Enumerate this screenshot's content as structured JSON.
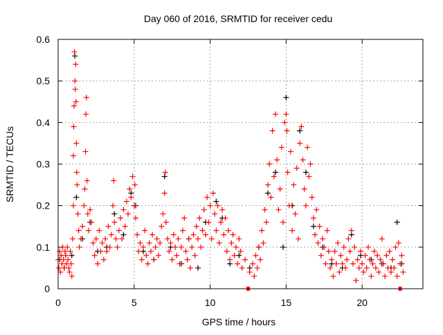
{
  "chart_data": {
    "type": "scatter",
    "title": "Day 060 of 2016, SRMTID for receiver cedu",
    "xlabel": "GPS time / hours",
    "ylabel": "SRMTID / TECUs",
    "xlim": [
      0,
      24
    ],
    "ylim": [
      0,
      0.6
    ],
    "xticks": [
      0,
      5,
      10,
      15,
      20
    ],
    "yticks": [
      0,
      0.1,
      0.2,
      0.3,
      0.4,
      0.5,
      0.6
    ],
    "xtick_labels": [
      "0",
      "5",
      "10",
      "15",
      "20"
    ],
    "ytick_labels": [
      "0",
      "0.1",
      "0.2",
      "0.3",
      "0.4",
      "0.5",
      "0.6"
    ],
    "grid": true,
    "series": [
      {
        "name": "black",
        "color": "#000000",
        "marker": "plus",
        "points": [
          [
            0.1,
            0.07
          ],
          [
            0.4,
            0.05
          ],
          [
            0.9,
            0.08
          ],
          [
            1.1,
            0.56
          ],
          [
            1.2,
            0.22
          ],
          [
            1.6,
            0.12
          ],
          [
            2.1,
            0.16
          ],
          [
            2.6,
            0.09
          ],
          [
            3.2,
            0.1
          ],
          [
            3.7,
            0.18
          ],
          [
            4.3,
            0.13
          ],
          [
            4.8,
            0.23
          ],
          [
            5.1,
            0.2
          ],
          [
            5.6,
            0.09
          ],
          [
            6.3,
            0.07
          ],
          [
            7.0,
            0.27
          ],
          [
            7.4,
            0.1
          ],
          [
            8.1,
            0.06
          ],
          [
            8.6,
            0.12
          ],
          [
            9.2,
            0.05
          ],
          [
            9.7,
            0.16
          ],
          [
            10.4,
            0.21
          ],
          [
            10.8,
            0.17
          ],
          [
            11.3,
            0.06
          ],
          [
            11.9,
            0.08
          ],
          [
            12.6,
            0.05
          ],
          [
            13.2,
            0.1
          ],
          [
            13.8,
            0.23
          ],
          [
            14.3,
            0.28
          ],
          [
            14.8,
            0.1
          ],
          [
            15.0,
            0.46
          ],
          [
            15.4,
            0.2
          ],
          [
            15.9,
            0.38
          ],
          [
            16.3,
            0.28
          ],
          [
            16.8,
            0.15
          ],
          [
            17.4,
            0.1
          ],
          [
            18.0,
            0.06
          ],
          [
            18.7,
            0.05
          ],
          [
            19.3,
            0.13
          ],
          [
            19.9,
            0.08
          ],
          [
            20.6,
            0.07
          ],
          [
            21.3,
            0.06
          ],
          [
            21.9,
            0.05
          ],
          [
            22.3,
            0.16
          ],
          [
            22.6,
            0.06
          ]
        ]
      },
      {
        "name": "red",
        "color": "#ff0000",
        "marker": "plus",
        "points": [
          [
            0.0,
            0.07
          ],
          [
            0.05,
            0.05
          ],
          [
            0.1,
            0.09
          ],
          [
            0.15,
            0.04
          ],
          [
            0.2,
            0.08
          ],
          [
            0.25,
            0.06
          ],
          [
            0.3,
            0.1
          ],
          [
            0.35,
            0.07
          ],
          [
            0.4,
            0.05
          ],
          [
            0.45,
            0.09
          ],
          [
            0.5,
            0.08
          ],
          [
            0.55,
            0.06
          ],
          [
            0.6,
            0.1
          ],
          [
            0.65,
            0.07
          ],
          [
            0.7,
            0.05
          ],
          [
            0.75,
            0.04
          ],
          [
            0.8,
            0.09
          ],
          [
            0.85,
            0.06
          ],
          [
            0.9,
            0.03
          ],
          [
            0.95,
            0.12
          ],
          [
            1.0,
            0.2
          ],
          [
            1.0,
            0.32
          ],
          [
            1.02,
            0.39
          ],
          [
            1.05,
            0.44
          ],
          [
            1.07,
            0.57
          ],
          [
            1.1,
            0.5
          ],
          [
            1.12,
            0.48
          ],
          [
            1.15,
            0.54
          ],
          [
            1.17,
            0.45
          ],
          [
            1.2,
            0.35
          ],
          [
            1.22,
            0.28
          ],
          [
            1.25,
            0.25
          ],
          [
            1.3,
            0.18
          ],
          [
            1.35,
            0.14
          ],
          [
            1.4,
            0.1
          ],
          [
            1.5,
            0.12
          ],
          [
            1.6,
            0.15
          ],
          [
            1.7,
            0.2
          ],
          [
            1.75,
            0.24
          ],
          [
            1.8,
            0.33
          ],
          [
            1.83,
            0.42
          ],
          [
            1.86,
            0.46
          ],
          [
            1.9,
            0.26
          ],
          [
            1.95,
            0.18
          ],
          [
            2.0,
            0.14
          ],
          [
            2.1,
            0.19
          ],
          [
            2.2,
            0.16
          ],
          [
            2.3,
            0.11
          ],
          [
            2.4,
            0.08
          ],
          [
            2.5,
            0.12
          ],
          [
            2.6,
            0.06
          ],
          [
            2.7,
            0.14
          ],
          [
            2.8,
            0.09
          ],
          [
            2.9,
            0.11
          ],
          [
            3.0,
            0.07
          ],
          [
            3.1,
            0.12
          ],
          [
            3.2,
            0.09
          ],
          [
            3.3,
            0.15
          ],
          [
            3.4,
            0.1
          ],
          [
            3.5,
            0.13
          ],
          [
            3.6,
            0.2
          ],
          [
            3.65,
            0.26
          ],
          [
            3.7,
            0.16
          ],
          [
            3.8,
            0.12
          ],
          [
            3.9,
            0.1
          ],
          [
            4.0,
            0.14
          ],
          [
            4.1,
            0.17
          ],
          [
            4.2,
            0.12
          ],
          [
            4.3,
            0.19
          ],
          [
            4.4,
            0.15
          ],
          [
            4.5,
            0.21
          ],
          [
            4.6,
            0.18
          ],
          [
            4.7,
            0.24
          ],
          [
            4.8,
            0.22
          ],
          [
            4.9,
            0.27
          ],
          [
            5.0,
            0.2
          ],
          [
            5.05,
            0.25
          ],
          [
            5.1,
            0.17
          ],
          [
            5.2,
            0.13
          ],
          [
            5.3,
            0.09
          ],
          [
            5.4,
            0.11
          ],
          [
            5.5,
            0.07
          ],
          [
            5.6,
            0.1
          ],
          [
            5.7,
            0.14
          ],
          [
            5.8,
            0.08
          ],
          [
            5.9,
            0.06
          ],
          [
            6.0,
            0.11
          ],
          [
            6.1,
            0.09
          ],
          [
            6.2,
            0.13
          ],
          [
            6.3,
            0.07
          ],
          [
            6.4,
            0.1
          ],
          [
            6.5,
            0.12
          ],
          [
            6.6,
            0.08
          ],
          [
            6.7,
            0.11
          ],
          [
            6.8,
            0.15
          ],
          [
            6.9,
            0.18
          ],
          [
            7.0,
            0.23
          ],
          [
            7.05,
            0.28
          ],
          [
            7.1,
            0.16
          ],
          [
            7.2,
            0.12
          ],
          [
            7.3,
            0.09
          ],
          [
            7.4,
            0.11
          ],
          [
            7.5,
            0.07
          ],
          [
            7.6,
            0.13
          ],
          [
            7.7,
            0.1
          ],
          [
            7.8,
            0.08
          ],
          [
            7.9,
            0.12
          ],
          [
            8.0,
            0.06
          ],
          [
            8.1,
            0.1
          ],
          [
            8.2,
            0.14
          ],
          [
            8.3,
            0.17
          ],
          [
            8.4,
            0.09
          ],
          [
            8.5,
            0.07
          ],
          [
            8.6,
            0.12
          ],
          [
            8.7,
            0.05
          ],
          [
            8.8,
            0.1
          ],
          [
            8.9,
            0.13
          ],
          [
            9.0,
            0.08
          ],
          [
            9.1,
            0.15
          ],
          [
            9.2,
            0.12
          ],
          [
            9.3,
            0.17
          ],
          [
            9.4,
            0.1
          ],
          [
            9.5,
            0.14
          ],
          [
            9.6,
            0.19
          ],
          [
            9.7,
            0.13
          ],
          [
            9.8,
            0.22
          ],
          [
            9.9,
            0.16
          ],
          [
            10.0,
            0.2
          ],
          [
            10.1,
            0.12
          ],
          [
            10.2,
            0.23
          ],
          [
            10.3,
            0.18
          ],
          [
            10.4,
            0.14
          ],
          [
            10.5,
            0.2
          ],
          [
            10.6,
            0.11
          ],
          [
            10.7,
            0.16
          ],
          [
            10.8,
            0.19
          ],
          [
            10.9,
            0.13
          ],
          [
            11.0,
            0.17
          ],
          [
            11.1,
            0.09
          ],
          [
            11.2,
            0.14
          ],
          [
            11.3,
            0.07
          ],
          [
            11.4,
            0.11
          ],
          [
            11.5,
            0.13
          ],
          [
            11.6,
            0.08
          ],
          [
            11.7,
            0.1
          ],
          [
            11.8,
            0.06
          ],
          [
            11.9,
            0.12
          ],
          [
            12.0,
            0.09
          ],
          [
            12.1,
            0.05
          ],
          [
            12.3,
            0.07
          ],
          [
            12.6,
            0.04
          ],
          [
            12.8,
            0.06
          ],
          [
            12.9,
            0.03
          ],
          [
            13.0,
            0.08
          ],
          [
            13.1,
            0.05
          ],
          [
            13.2,
            0.1
          ],
          [
            13.3,
            0.07
          ],
          [
            13.4,
            0.14
          ],
          [
            13.5,
            0.11
          ],
          [
            13.6,
            0.19
          ],
          [
            13.7,
            0.16
          ],
          [
            13.8,
            0.25
          ],
          [
            13.9,
            0.3
          ],
          [
            14.0,
            0.22
          ],
          [
            14.1,
            0.38
          ],
          [
            14.2,
            0.27
          ],
          [
            14.3,
            0.42
          ],
          [
            14.4,
            0.31
          ],
          [
            14.5,
            0.19
          ],
          [
            14.6,
            0.24
          ],
          [
            14.7,
            0.34
          ],
          [
            14.8,
            0.16
          ],
          [
            14.9,
            0.4
          ],
          [
            15.0,
            0.42
          ],
          [
            15.05,
            0.38
          ],
          [
            15.1,
            0.28
          ],
          [
            15.2,
            0.2
          ],
          [
            15.3,
            0.33
          ],
          [
            15.4,
            0.14
          ],
          [
            15.5,
            0.25
          ],
          [
            15.6,
            0.18
          ],
          [
            15.7,
            0.29
          ],
          [
            15.8,
            0.12
          ],
          [
            15.9,
            0.35
          ],
          [
            16.0,
            0.39
          ],
          [
            16.1,
            0.31
          ],
          [
            16.2,
            0.24
          ],
          [
            16.3,
            0.2
          ],
          [
            16.4,
            0.34
          ],
          [
            16.5,
            0.27
          ],
          [
            16.6,
            0.3
          ],
          [
            16.7,
            0.22
          ],
          [
            16.8,
            0.17
          ],
          [
            16.9,
            0.13
          ],
          [
            17.0,
            0.19
          ],
          [
            17.1,
            0.11
          ],
          [
            17.2,
            0.15
          ],
          [
            17.3,
            0.08
          ],
          [
            17.4,
            0.12
          ],
          [
            17.5,
            0.1
          ],
          [
            17.6,
            0.06
          ],
          [
            17.7,
            0.14
          ],
          [
            17.8,
            0.09
          ],
          [
            17.9,
            0.05
          ],
          [
            18.0,
            0.07
          ],
          [
            18.1,
            0.03
          ],
          [
            18.2,
            0.09
          ],
          [
            18.3,
            0.06
          ],
          [
            18.4,
            0.11
          ],
          [
            18.5,
            0.04
          ],
          [
            18.6,
            0.08
          ],
          [
            18.7,
            0.06
          ],
          [
            18.8,
            0.1
          ],
          [
            18.9,
            0.05
          ],
          [
            19.0,
            0.07
          ],
          [
            19.1,
            0.12
          ],
          [
            19.2,
            0.09
          ],
          [
            19.3,
            0.14
          ],
          [
            19.4,
            0.06
          ],
          [
            19.5,
            0.1
          ],
          [
            19.6,
            0.02
          ],
          [
            19.7,
            0.07
          ],
          [
            19.8,
            0.05
          ],
          [
            19.9,
            0.09
          ],
          [
            20.0,
            0.06
          ],
          [
            20.1,
            0.04
          ],
          [
            20.2,
            0.08
          ],
          [
            20.3,
            0.05
          ],
          [
            20.4,
            0.1
          ],
          [
            20.5,
            0.07
          ],
          [
            20.6,
            0.03
          ],
          [
            20.7,
            0.06
          ],
          [
            20.8,
            0.09
          ],
          [
            20.9,
            0.05
          ],
          [
            21.0,
            0.08
          ],
          [
            21.1,
            0.04
          ],
          [
            21.2,
            0.07
          ],
          [
            21.3,
            0.12
          ],
          [
            21.4,
            0.06
          ],
          [
            21.5,
            0.03
          ],
          [
            21.6,
            0.08
          ],
          [
            21.7,
            0.05
          ],
          [
            21.8,
            0.09
          ],
          [
            21.9,
            0.04
          ],
          [
            22.0,
            0.07
          ],
          [
            22.1,
            0.05
          ],
          [
            22.2,
            0.1
          ],
          [
            22.3,
            0.03
          ],
          [
            22.4,
            0.11
          ],
          [
            22.5,
            0.06
          ],
          [
            22.6,
            0.08
          ],
          [
            22.7,
            0.04
          ]
        ]
      }
    ],
    "markers": {
      "name": "gap-markers",
      "color": "#ff0000",
      "shape": "square",
      "points": [
        [
          12.5,
          0
        ],
        [
          22.5,
          0
        ]
      ]
    }
  }
}
